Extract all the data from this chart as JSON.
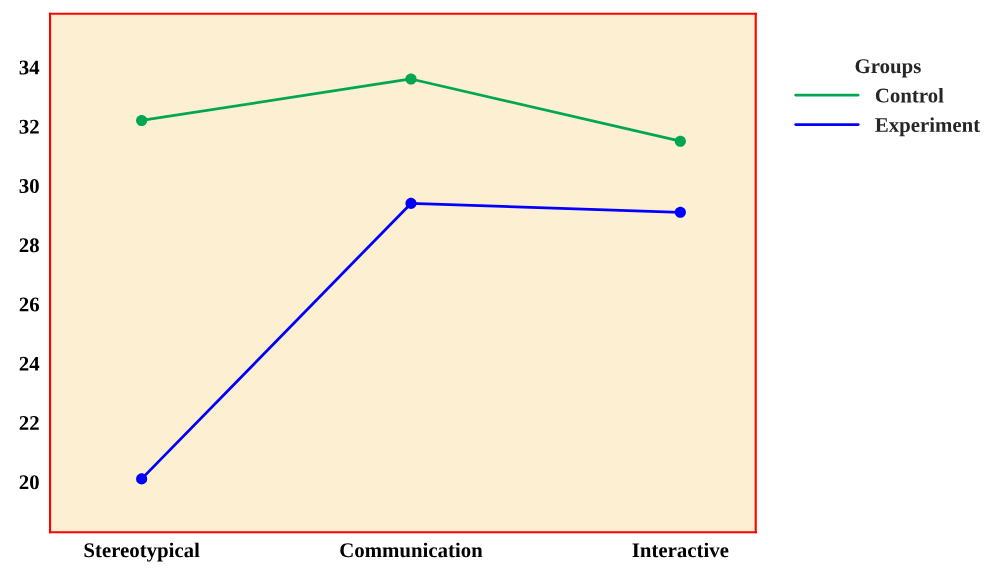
{
  "chart_data": {
    "type": "line",
    "categories": [
      "Stereotypical",
      "Communication",
      "Interactive"
    ],
    "series": [
      {
        "name": "Control",
        "color": "#00a651",
        "values": [
          32.2,
          33.6,
          31.5
        ]
      },
      {
        "name": "Experiment",
        "color": "#0000ff",
        "values": [
          20.1,
          29.4,
          29.1
        ]
      }
    ],
    "legend_title": "Groups",
    "legend": "right",
    "marker": "circle",
    "line_style": "solid",
    "grid": false,
    "ylim": [
      18.3,
      35.8
    ],
    "yticks": [
      20,
      22,
      24,
      26,
      28,
      30,
      32,
      34
    ]
  }
}
